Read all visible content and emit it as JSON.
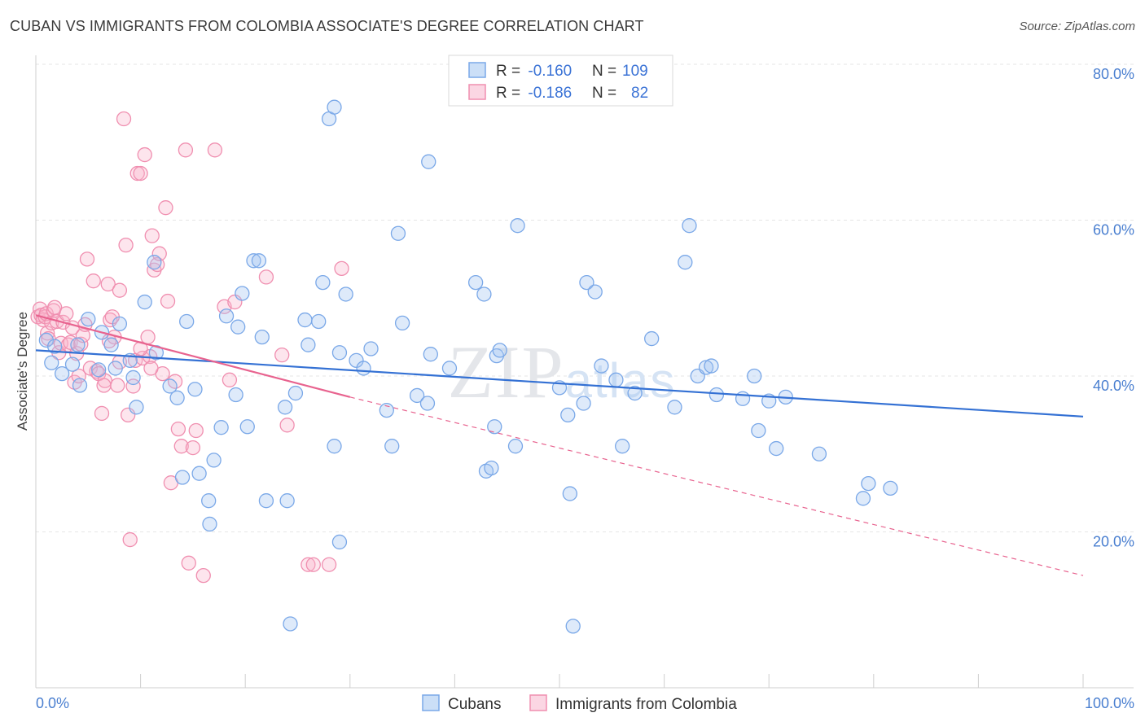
{
  "title": "CUBAN VS IMMIGRANTS FROM COLOMBIA ASSOCIATE'S DEGREE CORRELATION CHART",
  "source": "Source: ZipAtlas.com",
  "watermark": "ZIPatlas",
  "colors": {
    "cubans": "#7aa8e8",
    "cubans_fill": "rgba(160,196,240,0.35)",
    "cubans_line": "#3471d4",
    "colombia": "#f08fb0",
    "colombia_fill": "rgba(248,180,204,0.35)",
    "colombia_line": "#e8638f"
  },
  "legend": {
    "row1": {
      "r_label": "R = ",
      "r_value": "-0.160",
      "n_label": "N = ",
      "n_value": "109"
    },
    "row2": {
      "r_label": "R = ",
      "r_value": "-0.186",
      "n_label": "N = ",
      "n_value": "82"
    }
  },
  "chart_data": {
    "type": "scatter",
    "title": "CUBAN VS IMMIGRANTS FROM COLOMBIA ASSOCIATE'S DEGREE CORRELATION CHART",
    "xlabel": "",
    "ylabel": "Associate's Degree",
    "xlim": [
      0,
      100
    ],
    "ylim": [
      0,
      80
    ],
    "x_tick_labels": [
      "0.0%",
      "100.0%"
    ],
    "y_ticks": [
      20,
      40,
      60,
      80
    ],
    "y_tick_labels": [
      "20.0%",
      "40.0%",
      "60.0%",
      "80.0%"
    ],
    "grid": true,
    "legend_position": "top-center",
    "series": [
      {
        "name": "Cubans",
        "r": -0.16,
        "n": 109,
        "trend": {
          "x": [
            0,
            100
          ],
          "y": [
            43.3,
            34.8
          ],
          "style": "solid"
        },
        "points": [
          [
            1,
            44.6
          ],
          [
            1.5,
            41.7
          ],
          [
            1.8,
            43.8
          ],
          [
            2.5,
            40.3
          ],
          [
            3.5,
            41.5
          ],
          [
            4,
            44
          ],
          [
            4.2,
            38.8
          ],
          [
            5,
            47.3
          ],
          [
            6,
            40.8
          ],
          [
            6.3,
            45.6
          ],
          [
            7.2,
            44
          ],
          [
            7.6,
            41
          ],
          [
            8,
            46.7
          ],
          [
            9,
            42
          ],
          [
            9.3,
            39.8
          ],
          [
            9.6,
            36
          ],
          [
            10.4,
            49.5
          ],
          [
            11.3,
            54.6
          ],
          [
            11.5,
            43
          ],
          [
            12.8,
            38.7
          ],
          [
            13.5,
            37.2
          ],
          [
            14,
            27
          ],
          [
            14.4,
            47
          ],
          [
            15.2,
            38.3
          ],
          [
            15.6,
            27.5
          ],
          [
            16.5,
            24
          ],
          [
            16.6,
            21
          ],
          [
            17,
            29.2
          ],
          [
            17.7,
            33.4
          ],
          [
            18.2,
            47.7
          ],
          [
            19.1,
            37.6
          ],
          [
            19.3,
            46.3
          ],
          [
            19.7,
            50.6
          ],
          [
            20.2,
            33.5
          ],
          [
            20.8,
            54.8
          ],
          [
            21.3,
            54.8
          ],
          [
            21.6,
            45
          ],
          [
            22,
            24
          ],
          [
            23.8,
            36
          ],
          [
            24,
            24
          ],
          [
            24.3,
            8.2
          ],
          [
            24.8,
            37.8
          ],
          [
            25.7,
            47.2
          ],
          [
            26,
            44
          ],
          [
            27,
            47
          ],
          [
            27.4,
            52
          ],
          [
            28,
            73
          ],
          [
            28.5,
            74.5
          ],
          [
            28.5,
            31
          ],
          [
            29,
            18.7
          ],
          [
            29,
            43
          ],
          [
            29.6,
            50.5
          ],
          [
            30.6,
            42
          ],
          [
            31.3,
            41
          ],
          [
            32,
            43.5
          ],
          [
            33.5,
            35.6
          ],
          [
            34,
            31
          ],
          [
            34.6,
            58.3
          ],
          [
            35,
            46.8
          ],
          [
            36.4,
            37.5
          ],
          [
            37.4,
            36.5
          ],
          [
            37.5,
            67.5
          ],
          [
            37.7,
            42.8
          ],
          [
            39.5,
            41
          ],
          [
            42,
            52
          ],
          [
            42.8,
            50.5
          ],
          [
            43,
            27.8
          ],
          [
            43.5,
            28.2
          ],
          [
            43.8,
            33.5
          ],
          [
            44,
            42.6
          ],
          [
            44.3,
            43.3
          ],
          [
            45.8,
            31
          ],
          [
            46,
            59.3
          ],
          [
            50,
            38.5
          ],
          [
            50.8,
            35
          ],
          [
            51,
            24.9
          ],
          [
            51.3,
            7.9
          ],
          [
            52.3,
            36.5
          ],
          [
            52.6,
            52
          ],
          [
            53.4,
            50.8
          ],
          [
            54,
            41.3
          ],
          [
            55.4,
            39.5
          ],
          [
            56,
            31
          ],
          [
            57.2,
            37.8
          ],
          [
            58.8,
            44.8
          ],
          [
            61,
            36
          ],
          [
            62,
            54.6
          ],
          [
            62.4,
            59.3
          ],
          [
            63.2,
            40
          ],
          [
            64,
            41.1
          ],
          [
            64.5,
            41.3
          ],
          [
            65,
            37.6
          ],
          [
            67.5,
            37.1
          ],
          [
            68.6,
            40
          ],
          [
            69,
            33
          ],
          [
            70,
            36.8
          ],
          [
            70.7,
            30.7
          ],
          [
            71.6,
            37.3
          ],
          [
            74.8,
            30
          ],
          [
            79,
            24.3
          ],
          [
            79.5,
            26.2
          ],
          [
            81.6,
            25.6
          ]
        ]
      },
      {
        "name": "Immigrants from Colombia",
        "r": -0.186,
        "n": 82,
        "trend": {
          "x": [
            0,
            30
          ],
          "y": [
            47.8,
            37.3
          ],
          "style": "solid",
          "extended": {
            "x": [
              30,
              100
            ],
            "y": [
              37.3,
              14.4
            ],
            "style": "dashed"
          }
        },
        "points": [
          [
            0.2,
            47.6
          ],
          [
            0.4,
            48.6
          ],
          [
            0.5,
            47.8
          ],
          [
            0.7,
            47.2
          ],
          [
            0.9,
            47.6
          ],
          [
            1,
            48
          ],
          [
            1.1,
            45.5
          ],
          [
            1.2,
            44.8
          ],
          [
            1.5,
            46.8
          ],
          [
            1.7,
            48.4
          ],
          [
            1.8,
            48.8
          ],
          [
            2,
            47
          ],
          [
            2.2,
            43
          ],
          [
            2.4,
            44.2
          ],
          [
            2.6,
            46.9
          ],
          [
            2.9,
            48
          ],
          [
            3.1,
            44
          ],
          [
            3.3,
            44.3
          ],
          [
            3.5,
            46.2
          ],
          [
            3.7,
            39.2
          ],
          [
            3.9,
            42.9
          ],
          [
            4.1,
            40
          ],
          [
            4.3,
            44.1
          ],
          [
            4.5,
            45.2
          ],
          [
            4.7,
            46.6
          ],
          [
            4.9,
            55
          ],
          [
            5.2,
            41
          ],
          [
            5.5,
            52.2
          ],
          [
            5.8,
            40.6
          ],
          [
            6,
            40.3
          ],
          [
            6.3,
            35.2
          ],
          [
            6.6,
            39.4
          ],
          [
            6.9,
            51.8
          ],
          [
            7.1,
            47.2
          ],
          [
            7.3,
            47.6
          ],
          [
            7.5,
            45
          ],
          [
            7.8,
            38.8
          ],
          [
            8,
            51
          ],
          [
            8.4,
            73
          ],
          [
            8.6,
            56.8
          ],
          [
            8.8,
            35
          ],
          [
            9,
            19
          ],
          [
            9.3,
            38.7
          ],
          [
            9.5,
            42
          ],
          [
            9.7,
            66
          ],
          [
            10,
            66
          ],
          [
            10.2,
            42.3
          ],
          [
            10.4,
            68.4
          ],
          [
            10.7,
            45
          ],
          [
            10.9,
            42.5
          ],
          [
            11.1,
            58
          ],
          [
            11.3,
            53.6
          ],
          [
            11.6,
            54.3
          ],
          [
            11.8,
            55.7
          ],
          [
            12.1,
            40.3
          ],
          [
            12.4,
            61.6
          ],
          [
            12.6,
            49.6
          ],
          [
            12.9,
            26.3
          ],
          [
            13.3,
            39.3
          ],
          [
            13.6,
            33.2
          ],
          [
            13.9,
            31
          ],
          [
            14.3,
            69
          ],
          [
            14.6,
            16
          ],
          [
            16,
            14.4
          ],
          [
            17.1,
            69
          ],
          [
            18,
            48.9
          ],
          [
            18.5,
            39.5
          ],
          [
            19,
            49.5
          ],
          [
            22,
            52.7
          ],
          [
            23.5,
            42.7
          ],
          [
            24,
            33.7
          ],
          [
            26,
            15.8
          ],
          [
            26.5,
            15.8
          ],
          [
            28,
            15.8
          ],
          [
            29.2,
            53.8
          ],
          [
            15,
            30.8
          ],
          [
            15.3,
            33
          ],
          [
            7,
            44.5
          ],
          [
            8,
            41.8
          ],
          [
            6.5,
            38.8
          ],
          [
            10,
            43.5
          ],
          [
            11,
            41
          ]
        ]
      }
    ],
    "bottom_legend": [
      "Cubans",
      "Immigrants from Colombia"
    ]
  }
}
